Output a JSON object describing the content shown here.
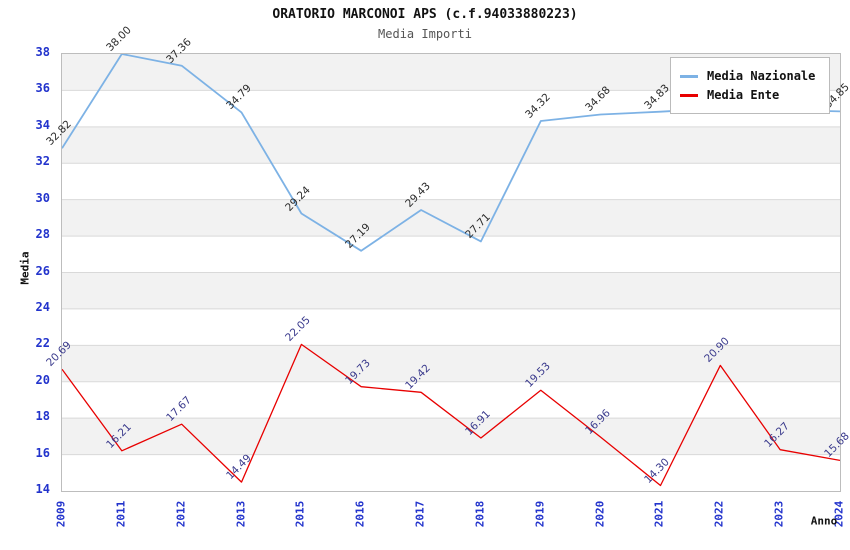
{
  "header": {
    "title": "ORATORIO MARCONOI APS (c.f.94033880223)",
    "subtitle": "Media Importi"
  },
  "axes": {
    "y_title": "Media",
    "x_title": "Anno",
    "y_ticks": [
      38,
      36,
      34,
      32,
      30,
      28,
      26,
      24,
      22,
      20,
      18,
      16,
      14
    ],
    "tick_color": "#2233cc"
  },
  "legend": {
    "items": [
      {
        "label": "Media Nazionale",
        "color": "#7db2e5"
      },
      {
        "label": "Media Ente",
        "color": "#e80000"
      }
    ]
  },
  "chart_data": {
    "type": "line",
    "title": "ORATORIO MARCONOI APS (c.f.94033880223)",
    "subtitle": "Media Importi",
    "xlabel": "Anno",
    "ylabel": "Media",
    "ylim": [
      14,
      38
    ],
    "grid": "horizontal, every 2 units, with alternating gray bands",
    "legend_position": "top-right, inside plot",
    "categories": [
      "2009",
      "2011",
      "2012",
      "2013",
      "2015",
      "2016",
      "2017",
      "2018",
      "2019",
      "2020",
      "2021",
      "2022",
      "2023",
      "2024"
    ],
    "series": [
      {
        "name": "Media Nazionale",
        "color": "#7db2e5",
        "label_color": "#2a2a2a",
        "line_width": 1.8,
        "values": [
          32.82,
          38.0,
          37.36,
          34.79,
          29.24,
          27.19,
          29.43,
          27.71,
          34.32,
          34.68,
          34.83,
          35.02,
          34.93,
          34.85
        ],
        "labels": [
          "32.82",
          "38.00",
          "37.36",
          "34.79",
          "29.24",
          "27.19",
          "29.43",
          "27.71",
          "34.32",
          "34.68",
          "34.83",
          "",
          "",
          "34.85"
        ]
      },
      {
        "name": "Media Ente",
        "color": "#e80000",
        "label_color": "#39398c",
        "line_width": 1.3,
        "values": [
          20.69,
          16.21,
          17.67,
          14.49,
          22.05,
          19.73,
          19.42,
          16.91,
          19.53,
          16.96,
          14.3,
          20.9,
          16.27,
          15.68
        ],
        "labels": [
          "20.69",
          "16.21",
          "17.67",
          "14.49",
          "22.05",
          "19.73",
          "19.42",
          "16.91",
          "19.53",
          "16.96",
          "14.30",
          "20.90",
          "16.27",
          "15.68"
        ]
      }
    ],
    "plot_colors": {
      "band": "#f2f2f2",
      "gridline": "#d9d9d9",
      "border": "#bdbdbd"
    }
  }
}
